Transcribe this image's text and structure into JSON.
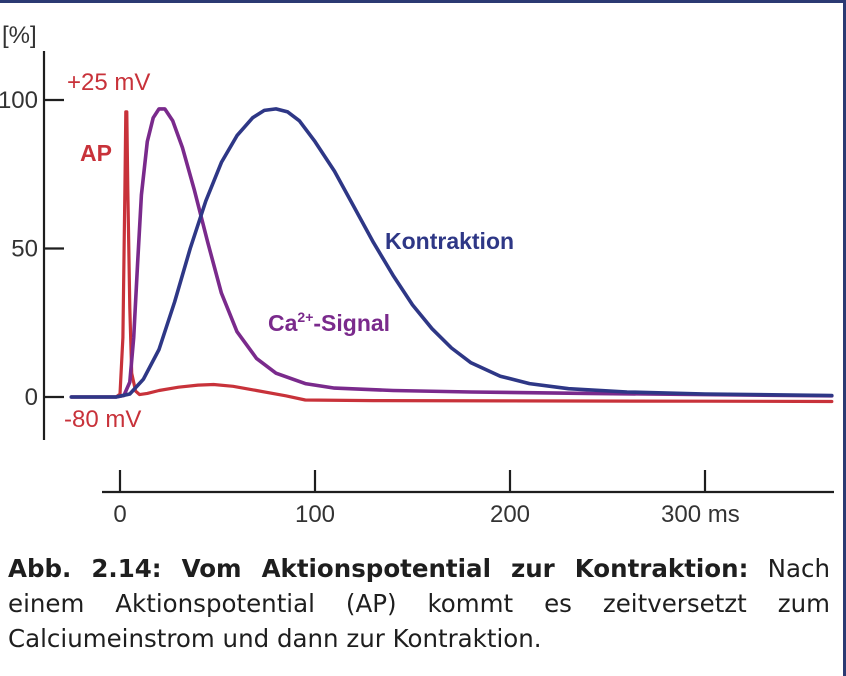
{
  "chart_data": {
    "type": "line",
    "y_unit_label": "[%]",
    "x_unit": "ms",
    "xlim": [
      -25,
      365
    ],
    "ylim": [
      -15,
      110
    ],
    "y_ticks": [
      {
        "value": 0,
        "label": "0"
      },
      {
        "value": 50,
        "label": "50"
      },
      {
        "value": 100,
        "label": "100"
      }
    ],
    "x_ticks": [
      {
        "value": 0,
        "label": "0"
      },
      {
        "value": 100,
        "label": "100"
      },
      {
        "value": 200,
        "label": "200"
      },
      {
        "value": 300,
        "label": "300 ms"
      }
    ],
    "annotations": {
      "plus25": "+25 mV",
      "minus80": "-80 mV"
    },
    "series": [
      {
        "name": "AP",
        "color": "#c8323a",
        "points": [
          [
            -25,
            0
          ],
          [
            -2,
            0
          ],
          [
            0,
            1
          ],
          [
            1.5,
            20
          ],
          [
            2.5,
            70
          ],
          [
            3,
            96
          ],
          [
            3.5,
            96
          ],
          [
            4,
            70
          ],
          [
            5,
            30
          ],
          [
            6,
            8
          ],
          [
            8,
            2
          ],
          [
            10,
            0.8
          ],
          [
            14,
            1.2
          ],
          [
            20,
            2.2
          ],
          [
            30,
            3.3
          ],
          [
            40,
            4
          ],
          [
            48,
            4.2
          ],
          [
            58,
            3.6
          ],
          [
            70,
            2.2
          ],
          [
            85,
            0.4
          ],
          [
            95,
            -1
          ],
          [
            130,
            -1.2
          ],
          [
            200,
            -1.3
          ],
          [
            300,
            -1.4
          ],
          [
            365,
            -1.5
          ]
        ]
      },
      {
        "name_parts": [
          "Ca",
          "2+",
          "-Signal"
        ],
        "color": "#7a2a8c",
        "points": [
          [
            -25,
            0
          ],
          [
            -2,
            0
          ],
          [
            2,
            0.5
          ],
          [
            5,
            5
          ],
          [
            7,
            20
          ],
          [
            9,
            45
          ],
          [
            11,
            68
          ],
          [
            14,
            86
          ],
          [
            17,
            94
          ],
          [
            20,
            97
          ],
          [
            23,
            97
          ],
          [
            27,
            93
          ],
          [
            32,
            84
          ],
          [
            38,
            70
          ],
          [
            45,
            52
          ],
          [
            52,
            35
          ],
          [
            60,
            22
          ],
          [
            70,
            13
          ],
          [
            80,
            8
          ],
          [
            95,
            4.5
          ],
          [
            110,
            3
          ],
          [
            140,
            2.2
          ],
          [
            180,
            1.7
          ],
          [
            240,
            1.2
          ],
          [
            300,
            0.8
          ],
          [
            365,
            0.4
          ]
        ]
      },
      {
        "name": "Kontraktion",
        "color": "#2e3786",
        "points": [
          [
            -25,
            0
          ],
          [
            -2,
            0
          ],
          [
            5,
            1
          ],
          [
            12,
            6
          ],
          [
            20,
            16
          ],
          [
            28,
            32
          ],
          [
            36,
            50
          ],
          [
            44,
            66
          ],
          [
            52,
            79
          ],
          [
            60,
            88
          ],
          [
            68,
            94
          ],
          [
            74,
            96.5
          ],
          [
            80,
            97
          ],
          [
            86,
            96
          ],
          [
            92,
            93
          ],
          [
            100,
            86
          ],
          [
            110,
            76
          ],
          [
            120,
            64
          ],
          [
            130,
            52
          ],
          [
            140,
            41
          ],
          [
            150,
            31
          ],
          [
            160,
            23
          ],
          [
            170,
            16.5
          ],
          [
            180,
            11.5
          ],
          [
            195,
            7
          ],
          [
            210,
            4.5
          ],
          [
            230,
            2.8
          ],
          [
            260,
            1.7
          ],
          [
            300,
            1
          ],
          [
            365,
            0.5
          ]
        ]
      }
    ]
  },
  "caption": {
    "bold": "Abb. 2.14: Vom Aktionspotential zur Kontraktion:",
    "text": " Nach einem Aktionspotential (AP) kommt es zeitversetzt zum Calciumeinstrom und dann zur Kontraktion."
  }
}
